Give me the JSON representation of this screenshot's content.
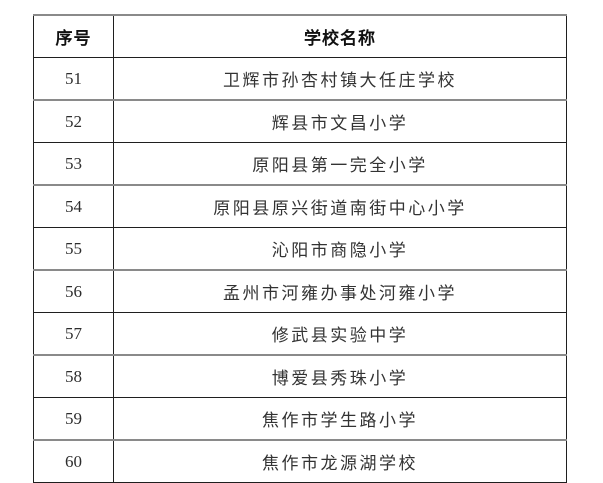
{
  "table": {
    "headers": {
      "serial": "序号",
      "school": "学校名称"
    },
    "rows": [
      {
        "no": "51",
        "name": "卫辉市孙杏村镇大任庄学校"
      },
      {
        "no": "52",
        "name": "辉县市文昌小学"
      },
      {
        "no": "53",
        "name": "原阳县第一完全小学"
      },
      {
        "no": "54",
        "name": "原阳县原兴街道南街中心小学"
      },
      {
        "no": "55",
        "name": "沁阳市商隐小学"
      },
      {
        "no": "56",
        "name": "孟州市河雍办事处河雍小学"
      },
      {
        "no": "57",
        "name": "修武县实验中学"
      },
      {
        "no": "58",
        "name": "博爱县秀珠小学"
      },
      {
        "no": "59",
        "name": "焦作市学生路小学"
      },
      {
        "no": "60",
        "name": "焦作市龙源湖学校"
      }
    ]
  }
}
